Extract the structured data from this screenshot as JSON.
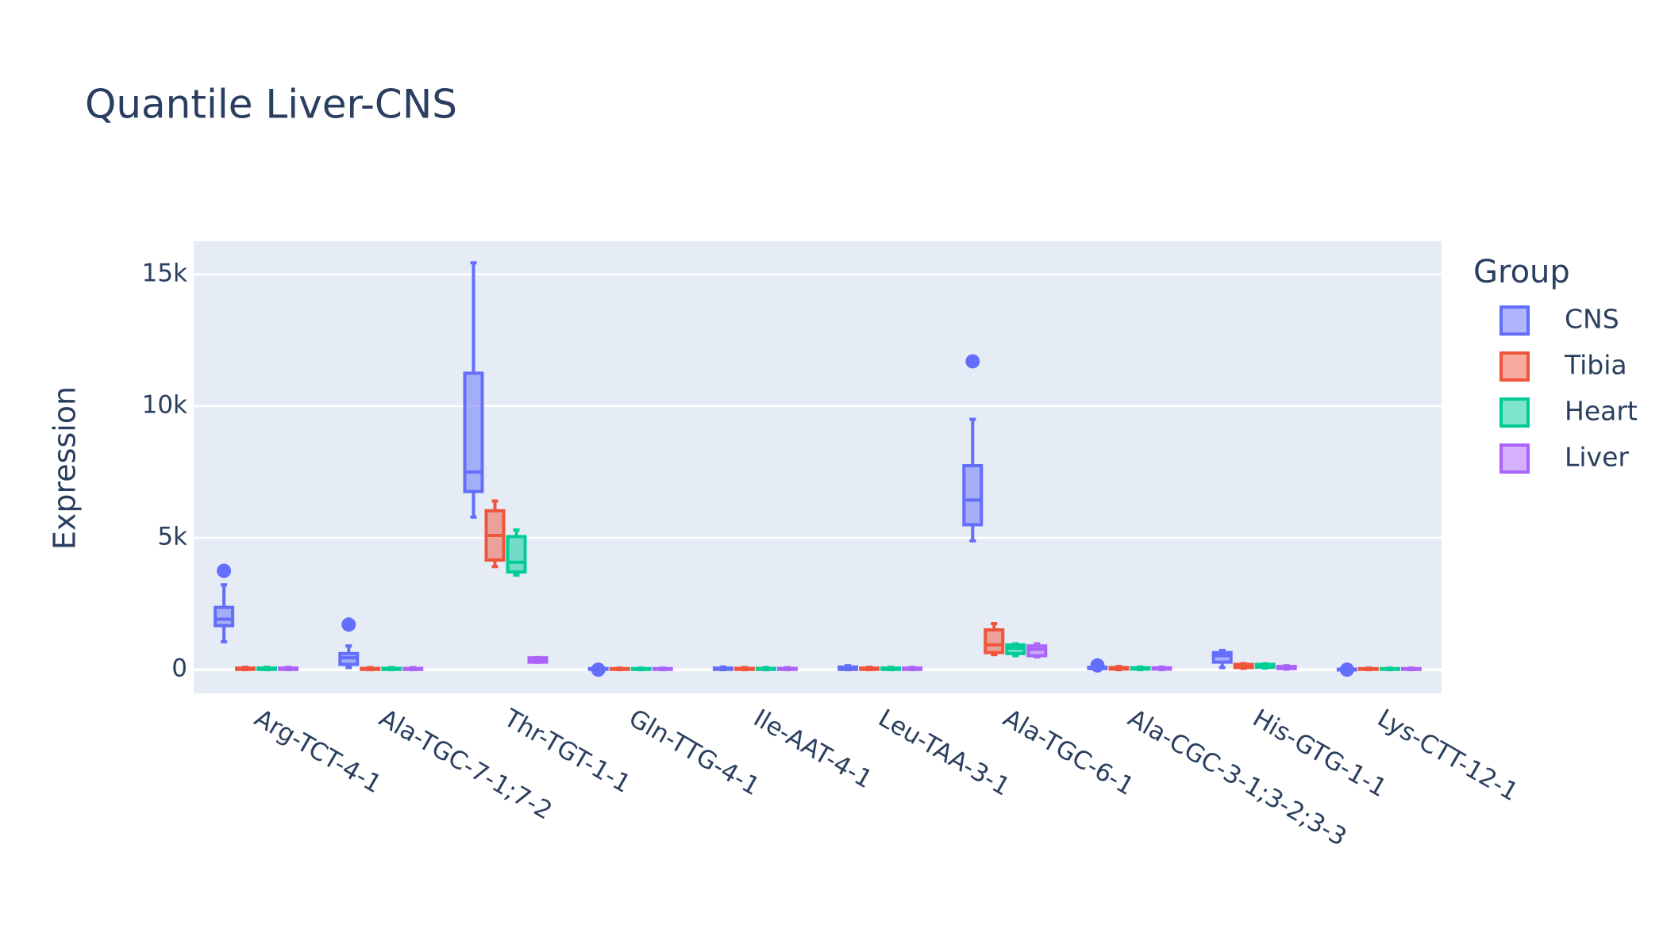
{
  "chart_data": {
    "type": "box",
    "title": "Quantile Liver-CNS",
    "y_label": "Expression",
    "legend_title": "Group",
    "categories": [
      "Arg-TCT-4-1",
      "Ala-TGC-7-1;7-2",
      "Thr-TGT-1-1",
      "Gln-TTG-4-1",
      "Ile-AAT-4-1",
      "Leu-TAA-3-1",
      "Ala-TGC-6-1",
      "Ala-CGC-3-1;3-2;3-3",
      "His-GTG-1-1",
      "Lys-CTT-12-1"
    ],
    "ylim": [
      -900,
      16260
    ],
    "yticks": [
      0,
      {
        "value": 5000,
        "label": "5k"
      },
      {
        "value": 10000,
        "label": "10k"
      },
      {
        "value": 15000,
        "label": "15k"
      }
    ],
    "grid": true,
    "series": [
      {
        "name": "CNS",
        "color": "#636efa",
        "lowerfence": [
          1060,
          80,
          5790,
          5,
          0,
          0,
          4890,
          10,
          80,
          2
        ],
        "q1": [
          1670,
          200,
          6760,
          10,
          10,
          10,
          5500,
          40,
          285,
          5
        ],
        "median": [
          1915,
          450,
          7500,
          20,
          20,
          30,
          6440,
          60,
          530,
          10
        ],
        "q3": [
          2364,
          610,
          11250,
          40,
          60,
          100,
          7740,
          90,
          650,
          20
        ],
        "upperfence": [
          3219,
          900,
          15440,
          60,
          100,
          150,
          9500,
          130,
          730,
          30
        ],
        "outliers": [
          [
            3750
          ],
          [
            1710
          ],
          [],
          [
            0
          ],
          [],
          [],
          [
            11700
          ],
          [
            160
          ],
          [],
          [
            0
          ]
        ]
      },
      {
        "name": "Tibia",
        "color": "#EF553B",
        "lowerfence": [
          0,
          0,
          3910,
          0,
          0,
          0,
          570,
          0,
          50,
          0
        ],
        "q1": [
          10,
          10,
          4160,
          10,
          10,
          10,
          650,
          20,
          80,
          10
        ],
        "median": [
          30,
          20,
          5090,
          20,
          20,
          30,
          940,
          50,
          120,
          20
        ],
        "q3": [
          60,
          50,
          6030,
          40,
          50,
          60,
          1510,
          80,
          200,
          40
        ],
        "upperfence": [
          90,
          80,
          6400,
          60,
          80,
          90,
          1750,
          120,
          230,
          60
        ],
        "outliers": [
          [],
          [],
          [],
          [],
          [],
          [],
          [],
          [],
          [],
          []
        ]
      },
      {
        "name": "Heart",
        "color": "#00cc96",
        "lowerfence": [
          0,
          0,
          3590,
          0,
          0,
          0,
          530,
          0,
          60,
          0
        ],
        "q1": [
          10,
          10,
          3710,
          10,
          10,
          10,
          610,
          20,
          90,
          10
        ],
        "median": [
          30,
          20,
          4075,
          20,
          20,
          30,
          815,
          40,
          140,
          20
        ],
        "q3": [
          60,
          50,
          5050,
          40,
          50,
          60,
          940,
          70,
          200,
          40
        ],
        "upperfence": [
          90,
          80,
          5300,
          60,
          80,
          90,
          980,
          100,
          220,
          60
        ],
        "outliers": [
          [],
          [],
          [],
          [],
          [],
          [],
          [],
          [],
          [],
          []
        ]
      },
      {
        "name": "Liver",
        "color": "#ab63fa",
        "lowerfence": [
          0,
          0,
          280,
          0,
          0,
          0,
          490,
          0,
          20,
          0
        ],
        "q1": [
          10,
          10,
          285,
          10,
          10,
          10,
          530,
          20,
          40,
          10
        ],
        "median": [
          30,
          20,
          370,
          20,
          20,
          30,
          775,
          40,
          70,
          20
        ],
        "q3": [
          60,
          50,
          450,
          40,
          50,
          60,
          900,
          70,
          120,
          40
        ],
        "upperfence": [
          90,
          80,
          460,
          60,
          80,
          90,
          980,
          100,
          150,
          60
        ],
        "outliers": [
          [],
          [],
          [],
          [],
          [],
          [],
          [],
          [],
          [],
          []
        ]
      }
    ]
  }
}
